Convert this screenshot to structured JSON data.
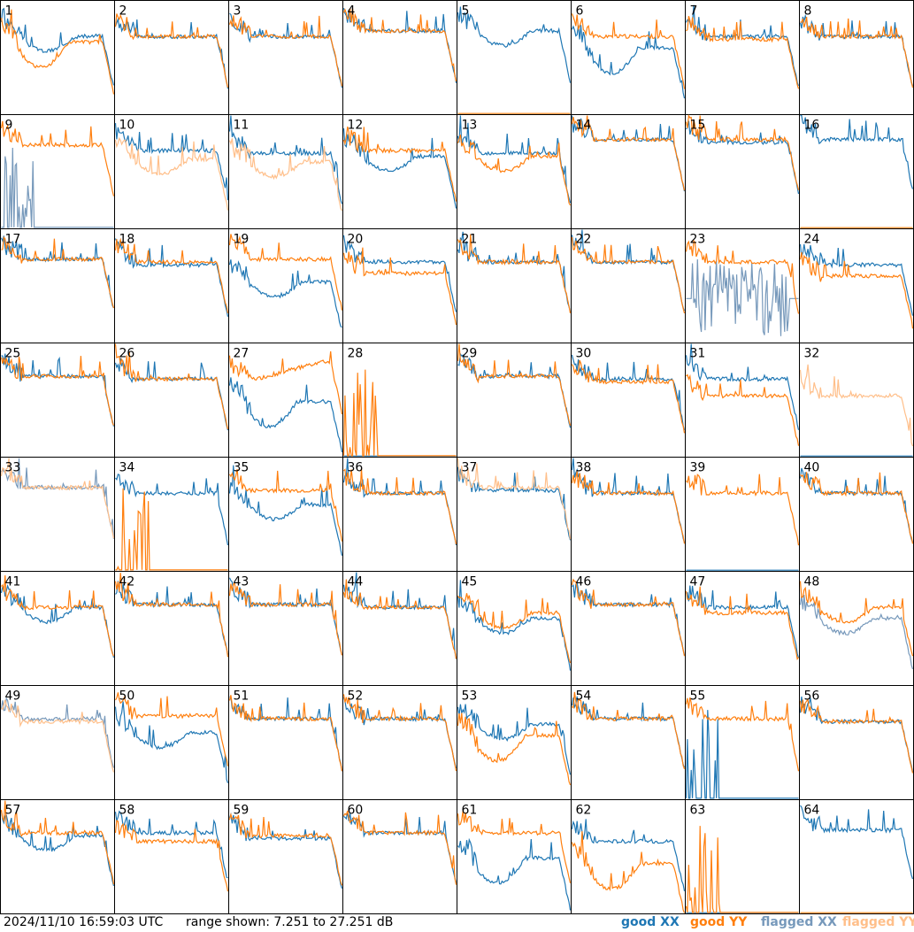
{
  "chart_data": {
    "type": "line",
    "layout": "small-multiples 8x8",
    "timestamp": "2024/11/10 16:59:03 UTC",
    "range_label": "range shown: 7.251 to 27.251 dB",
    "ylim": [
      7.251,
      27.251
    ],
    "legend": [
      {
        "label": "good XX",
        "color": "#1f77b4"
      },
      {
        "label": "good YY",
        "color": "#ff7f0e"
      },
      {
        "label": "flagged XX",
        "color": "#7799bb"
      },
      {
        "label": "flagged YY",
        "color": "#ffbf8a"
      }
    ],
    "colors": {
      "good_xx": "#1f77b4",
      "good_yy": "#ff7f0e",
      "flagged_xx": "#7799bb",
      "flagged_yy": "#ffbf8a"
    },
    "panels": [
      {
        "label": "1",
        "xx": "good",
        "yy": "good",
        "xx_level": 21,
        "yy_level": 20,
        "xx_shape": "dip",
        "yy_shape": "deepdip"
      },
      {
        "label": "2",
        "xx": "good",
        "yy": "good",
        "xx_level": 21,
        "yy_level": 21,
        "xx_shape": "flat",
        "yy_shape": "flat"
      },
      {
        "label": "3",
        "xx": "good",
        "yy": "good",
        "xx_level": 21,
        "yy_level": 21,
        "xx_shape": "flat",
        "yy_shape": "flat"
      },
      {
        "label": "4",
        "xx": "good",
        "yy": "good",
        "xx_level": 22,
        "yy_level": 22,
        "xx_shape": "flat",
        "yy_shape": "flat"
      },
      {
        "label": "5",
        "xx": "good",
        "yy": "good",
        "xx_level": 22,
        "yy_level": 7.3,
        "xx_shape": "dip",
        "yy_shape": "zero"
      },
      {
        "label": "6",
        "xx": "good",
        "yy": "good",
        "xx_level": 19,
        "yy_level": 21,
        "xx_shape": "deepdip",
        "yy_shape": "flat"
      },
      {
        "label": "7",
        "xx": "good",
        "yy": "good",
        "xx_level": 21,
        "yy_level": 20.5,
        "xx_shape": "flat",
        "yy_shape": "flat"
      },
      {
        "label": "8",
        "xx": "good",
        "yy": "good",
        "xx_level": 21,
        "yy_level": 21,
        "xx_shape": "flat",
        "yy_shape": "flat"
      },
      {
        "label": "9",
        "xx": "flagged",
        "yy": "good",
        "xx_level": 7.5,
        "yy_level": 22,
        "xx_shape": "spikes",
        "yy_shape": "flat"
      },
      {
        "label": "10",
        "xx": "good",
        "yy": "flagged",
        "xx_level": 21,
        "yy_level": 19.5,
        "xx_shape": "flat",
        "yy_shape": "dip"
      },
      {
        "label": "11",
        "xx": "good",
        "yy": "flagged",
        "xx_level": 20.5,
        "yy_level": 19,
        "xx_shape": "flat",
        "yy_shape": "dip"
      },
      {
        "label": "12",
        "xx": "good",
        "yy": "good",
        "xx_level": 20,
        "yy_level": 21,
        "xx_shape": "dip",
        "yy_shape": "flat"
      },
      {
        "label": "13",
        "xx": "good",
        "yy": "good",
        "xx_level": 20.5,
        "yy_level": 20,
        "xx_shape": "flat",
        "yy_shape": "dip"
      },
      {
        "label": "14",
        "xx": "good",
        "yy": "good",
        "xx_level": 23,
        "yy_level": 23,
        "xx_shape": "flat",
        "yy_shape": "flat"
      },
      {
        "label": "15",
        "xx": "good",
        "yy": "good",
        "xx_level": 22.5,
        "yy_level": 23,
        "xx_shape": "flat",
        "yy_shape": "flat"
      },
      {
        "label": "16",
        "xx": "good",
        "yy": "good",
        "xx_level": 23,
        "yy_level": 7.3,
        "xx_shape": "flat",
        "yy_shape": "zero"
      },
      {
        "label": "17",
        "xx": "good",
        "yy": "good",
        "xx_level": 22,
        "yy_level": 22,
        "xx_shape": "flat",
        "yy_shape": "flat"
      },
      {
        "label": "18",
        "xx": "good",
        "yy": "good",
        "xx_level": 21,
        "yy_level": 21.5,
        "xx_shape": "flat",
        "yy_shape": "flat"
      },
      {
        "label": "19",
        "xx": "good",
        "yy": "good",
        "xx_level": 18,
        "yy_level": 22,
        "xx_shape": "dip",
        "yy_shape": "flat"
      },
      {
        "label": "20",
        "xx": "good",
        "yy": "good",
        "xx_level": 21.5,
        "yy_level": 19.5,
        "xx_shape": "flat",
        "yy_shape": "flat"
      },
      {
        "label": "21",
        "xx": "good",
        "yy": "good",
        "xx_level": 21.5,
        "yy_level": 21.5,
        "xx_shape": "flat",
        "yy_shape": "flat"
      },
      {
        "label": "22",
        "xx": "good",
        "yy": "good",
        "xx_level": 21.5,
        "yy_level": 21.5,
        "xx_shape": "flat",
        "yy_shape": "flat"
      },
      {
        "label": "23",
        "xx": "flagged",
        "yy": "good",
        "xx_level": 15,
        "yy_level": 21.5,
        "xx_shape": "noise",
        "yy_shape": "flat"
      },
      {
        "label": "24",
        "xx": "good",
        "yy": "good",
        "xx_level": 21,
        "yy_level": 19,
        "xx_shape": "flat",
        "yy_shape": "flat"
      },
      {
        "label": "25",
        "xx": "good",
        "yy": "good",
        "xx_level": 21.5,
        "yy_level": 21.5,
        "xx_shape": "flat",
        "yy_shape": "flat"
      },
      {
        "label": "26",
        "xx": "good",
        "yy": "good",
        "xx_level": 21,
        "yy_level": 21,
        "xx_shape": "flat",
        "yy_shape": "flat"
      },
      {
        "label": "27",
        "xx": "good",
        "yy": "good",
        "xx_level": 17,
        "yy_level": 21,
        "xx_shape": "deepdip",
        "yy_shape": "rise"
      },
      {
        "label": "28",
        "xx": "good",
        "yy": "good",
        "xx_level": 7.3,
        "yy_level": 7.5,
        "xx_shape": "zero",
        "yy_shape": "spikes"
      },
      {
        "label": "29",
        "xx": "good",
        "yy": "good",
        "xx_level": 21.5,
        "yy_level": 21.5,
        "xx_shape": "flat",
        "yy_shape": "flat"
      },
      {
        "label": "30",
        "xx": "good",
        "yy": "good",
        "xx_level": 21,
        "yy_level": 20.5,
        "xx_shape": "flat",
        "yy_shape": "flat"
      },
      {
        "label": "31",
        "xx": "good",
        "yy": "good",
        "xx_level": 21,
        "yy_level": 18,
        "xx_shape": "flat",
        "yy_shape": "flat"
      },
      {
        "label": "32",
        "xx": "good",
        "yy": "flagged",
        "xx_level": 7.3,
        "yy_level": 18,
        "xx_shape": "zero",
        "yy_shape": "flat"
      },
      {
        "label": "33",
        "xx": "flagged",
        "yy": "flagged",
        "xx_level": 22,
        "yy_level": 22,
        "xx_shape": "flat",
        "yy_shape": "flat"
      },
      {
        "label": "34",
        "xx": "good",
        "yy": "good",
        "xx_level": 21,
        "yy_level": 7.5,
        "xx_shape": "flat",
        "yy_shape": "spikes"
      },
      {
        "label": "35",
        "xx": "good",
        "yy": "good",
        "xx_level": 19,
        "yy_level": 21.5,
        "xx_shape": "dip",
        "yy_shape": "flat"
      },
      {
        "label": "36",
        "xx": "good",
        "yy": "good",
        "xx_level": 21,
        "yy_level": 21,
        "xx_shape": "flat",
        "yy_shape": "flat"
      },
      {
        "label": "37",
        "xx": "good",
        "yy": "flagged",
        "xx_level": 21.5,
        "yy_level": 22,
        "xx_shape": "flat",
        "yy_shape": "flat"
      },
      {
        "label": "38",
        "xx": "good",
        "yy": "good",
        "xx_level": 21,
        "yy_level": 21,
        "xx_shape": "flat",
        "yy_shape": "flat"
      },
      {
        "label": "39",
        "xx": "good",
        "yy": "good",
        "xx_level": 7.3,
        "yy_level": 21,
        "xx_shape": "zero",
        "yy_shape": "flat"
      },
      {
        "label": "40",
        "xx": "good",
        "yy": "good",
        "xx_level": 21,
        "yy_level": 21,
        "xx_shape": "flat",
        "yy_shape": "flat"
      },
      {
        "label": "41",
        "xx": "good",
        "yy": "good",
        "xx_level": 21,
        "yy_level": 21,
        "xx_shape": "dip",
        "yy_shape": "flat"
      },
      {
        "label": "42",
        "xx": "good",
        "yy": "good",
        "xx_level": 21.5,
        "yy_level": 21.5,
        "xx_shape": "flat",
        "yy_shape": "flat"
      },
      {
        "label": "43",
        "xx": "good",
        "yy": "good",
        "xx_level": 21.5,
        "yy_level": 21.5,
        "xx_shape": "flat",
        "yy_shape": "flat"
      },
      {
        "label": "44",
        "xx": "good",
        "yy": "good",
        "xx_level": 21,
        "yy_level": 21,
        "xx_shape": "flat",
        "yy_shape": "flat"
      },
      {
        "label": "45",
        "xx": "good",
        "yy": "good",
        "xx_level": 19,
        "yy_level": 20,
        "xx_shape": "dip",
        "yy_shape": "dip"
      },
      {
        "label": "46",
        "xx": "good",
        "yy": "good",
        "xx_level": 21.5,
        "yy_level": 21.5,
        "xx_shape": "flat",
        "yy_shape": "flat"
      },
      {
        "label": "47",
        "xx": "good",
        "yy": "good",
        "xx_level": 21,
        "yy_level": 20,
        "xx_shape": "flat",
        "yy_shape": "flat"
      },
      {
        "label": "48",
        "xx": "flagged",
        "yy": "good",
        "xx_level": 19,
        "yy_level": 21,
        "xx_shape": "dip",
        "yy_shape": "dip"
      },
      {
        "label": "49",
        "xx": "flagged",
        "yy": "flagged",
        "xx_level": 21.5,
        "yy_level": 21,
        "xx_shape": "flat",
        "yy_shape": "flat"
      },
      {
        "label": "50",
        "xx": "good",
        "yy": "good",
        "xx_level": 19,
        "yy_level": 22,
        "xx_shape": "dip",
        "yy_shape": "flat"
      },
      {
        "label": "51",
        "xx": "good",
        "yy": "good",
        "xx_level": 21.5,
        "yy_level": 21.5,
        "xx_shape": "flat",
        "yy_shape": "flat"
      },
      {
        "label": "52",
        "xx": "good",
        "yy": "good",
        "xx_level": 21.5,
        "yy_level": 21.5,
        "xx_shape": "flat",
        "yy_shape": "flat"
      },
      {
        "label": "53",
        "xx": "good",
        "yy": "good",
        "xx_level": 20.5,
        "yy_level": 18.5,
        "xx_shape": "dip",
        "yy_shape": "deepdip"
      },
      {
        "label": "54",
        "xx": "good",
        "yy": "good",
        "xx_level": 21.5,
        "yy_level": 21.5,
        "xx_shape": "flat",
        "yy_shape": "flat"
      },
      {
        "label": "55",
        "xx": "good",
        "yy": "good",
        "xx_level": 7.5,
        "yy_level": 21.5,
        "xx_shape": "spikes",
        "yy_shape": "flat"
      },
      {
        "label": "56",
        "xx": "good",
        "yy": "good",
        "xx_level": 21,
        "yy_level": 21,
        "xx_shape": "flat",
        "yy_shape": "flat"
      },
      {
        "label": "57",
        "xx": "good",
        "yy": "good",
        "xx_level": 21,
        "yy_level": 21.5,
        "xx_shape": "dip",
        "yy_shape": "flat"
      },
      {
        "label": "58",
        "xx": "good",
        "yy": "good",
        "xx_level": 21.5,
        "yy_level": 20,
        "xx_shape": "flat",
        "yy_shape": "flat"
      },
      {
        "label": "59",
        "xx": "good",
        "yy": "good",
        "xx_level": 20.5,
        "yy_level": 21,
        "xx_shape": "flat",
        "yy_shape": "flat"
      },
      {
        "label": "60",
        "xx": "good",
        "yy": "good",
        "xx_level": 21.5,
        "yy_level": 21.5,
        "xx_shape": "flat",
        "yy_shape": "flat"
      },
      {
        "label": "61",
        "xx": "good",
        "yy": "good",
        "xx_level": 17,
        "yy_level": 21.5,
        "xx_shape": "deepdip",
        "yy_shape": "flat"
      },
      {
        "label": "62",
        "xx": "good",
        "yy": "good",
        "xx_level": 20,
        "yy_level": 16,
        "xx_shape": "flat",
        "yy_shape": "deepdip"
      },
      {
        "label": "63",
        "xx": "good",
        "yy": "good",
        "xx_level": 7.3,
        "yy_level": 7.5,
        "xx_shape": "zero",
        "yy_shape": "spikes"
      },
      {
        "label": "64",
        "xx": "good",
        "yy": "good",
        "xx_level": 22,
        "yy_level": 7.3,
        "xx_shape": "flat",
        "yy_shape": "zero"
      }
    ]
  }
}
